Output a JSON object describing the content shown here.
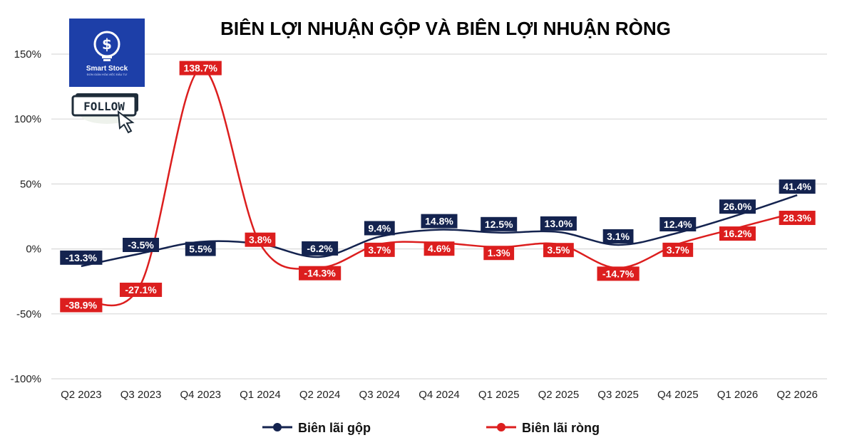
{
  "logo": {
    "name": "Smart Stock",
    "tagline": "ĐƠN GIẢN HÓA VIỆC ĐẦU TƯ",
    "follow_label": "FOLLOW"
  },
  "colors": {
    "gross": "#14234f",
    "net": "#dc1e1e",
    "grid": "#d9d9d9"
  },
  "chart_data": {
    "type": "line",
    "title": "BIÊN LỢI NHUẬN GỘP VÀ BIÊN LỢI NHUẬN RÒNG",
    "categories": [
      "Q2 2023",
      "Q3 2023",
      "Q4 2023",
      "Q1 2024",
      "Q2 2024",
      "Q3 2024",
      "Q4 2024",
      "Q1 2025",
      "Q2 2025",
      "Q3 2025",
      "Q4 2025",
      "Q1 2026",
      "Q2 2026"
    ],
    "ylim": [
      -100,
      150
    ],
    "yticks": [
      "-100%",
      "-50%",
      "0%",
      "50%",
      "100%",
      "150%"
    ],
    "ytick_values": [
      -100,
      -50,
      0,
      50,
      100,
      150
    ],
    "grid": true,
    "legend_position": "bottom",
    "series": [
      {
        "name": "Biên lãi gộp",
        "color": "#14234f",
        "values": [
          -13.3,
          -3.5,
          5.5,
          3.8,
          -6.2,
          9.4,
          14.8,
          12.5,
          13.0,
          3.1,
          12.4,
          26.0,
          41.4
        ],
        "labels": [
          "-13.3%",
          "-3.5%",
          "5.5%",
          "",
          "-6.2%",
          "9.4%",
          "14.8%",
          "12.5%",
          "13.0%",
          "3.1%",
          "12.4%",
          "26.0%",
          "41.4%"
        ]
      },
      {
        "name": "Biên lãi ròng",
        "color": "#dc1e1e",
        "values": [
          -38.9,
          -27.1,
          138.7,
          3.8,
          -14.3,
          3.7,
          4.6,
          1.3,
          3.5,
          -14.7,
          3.7,
          16.2,
          28.3
        ],
        "labels": [
          "-38.9%",
          "-27.1%",
          "138.7%",
          "3.8%",
          "-14.3%",
          "3.7%",
          "4.6%",
          "1.3%",
          "3.5%",
          "-14.7%",
          "3.7%",
          "16.2%",
          "28.3%"
        ]
      }
    ]
  }
}
